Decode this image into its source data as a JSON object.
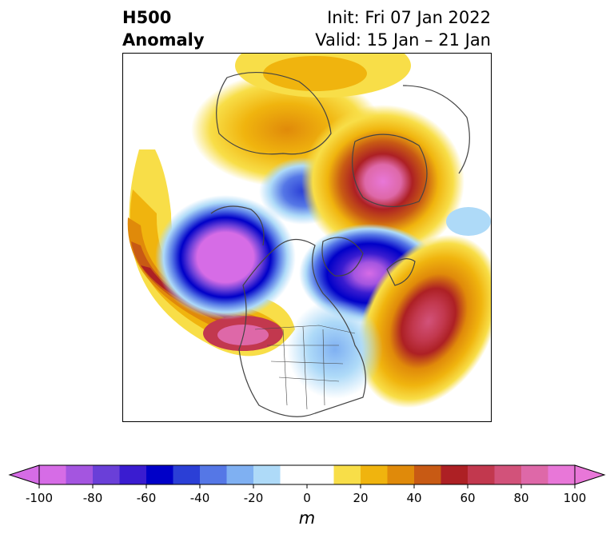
{
  "header": {
    "title_line1": "H500",
    "title_line2": "Anomaly",
    "init_label": "Init: Fri 07 Jan 2022",
    "valid_label": "Valid: 15 Jan – 21 Jan"
  },
  "colorbar": {
    "unit": "m",
    "range": [
      -100,
      100
    ],
    "step": 10,
    "extend": "both",
    "ticks": [
      "-100",
      "-80",
      "-60",
      "-40",
      "-20",
      "0",
      "20",
      "40",
      "60",
      "80",
      "100"
    ],
    "colors": [
      "#d66ce6",
      "#a455e0",
      "#6a3fd8",
      "#3a1cd0",
      "#0000c8",
      "#2b3fd6",
      "#5577e6",
      "#7fb0f2",
      "#aedaf8",
      "#ffffff",
      "#ffffff",
      "#f8de48",
      "#f0b40e",
      "#e08a0a",
      "#c85a14",
      "#ad2024",
      "#c2384e",
      "#d2527a",
      "#de68a8",
      "#e877d8"
    ],
    "under_color": "#d66ce6",
    "over_color": "#e877d8"
  },
  "chart_data": {
    "type": "heatmap",
    "title": "H500 Anomaly",
    "init": "Init: Fri 07 Jan 2022",
    "valid": "Valid: 15 Jan – 21 Jan",
    "units": "m",
    "projection": "polar-stereographic (North America / North Pole)",
    "value_range": [
      -100,
      100
    ],
    "features": [
      {
        "region": "Gulf of Alaska / NE Pacific",
        "sign": "negative",
        "peak_m": -100
      },
      {
        "region": "Labrador Sea / Davis Strait",
        "sign": "negative",
        "peak_m": -90
      },
      {
        "region": "Eastern Siberia",
        "sign": "negative",
        "peak_m": -50
      },
      {
        "region": "Eastern United States",
        "sign": "negative",
        "peak_m": -30
      },
      {
        "region": "Barents / Kara Sea",
        "sign": "positive",
        "peak_m": 100
      },
      {
        "region": "North Pacific arc to Western US",
        "sign": "positive",
        "peak_m": 100
      },
      {
        "region": "Central North Atlantic",
        "sign": "positive",
        "peak_m": 80
      },
      {
        "region": "Northeast Asia",
        "sign": "positive",
        "peak_m": 40
      }
    ]
  }
}
